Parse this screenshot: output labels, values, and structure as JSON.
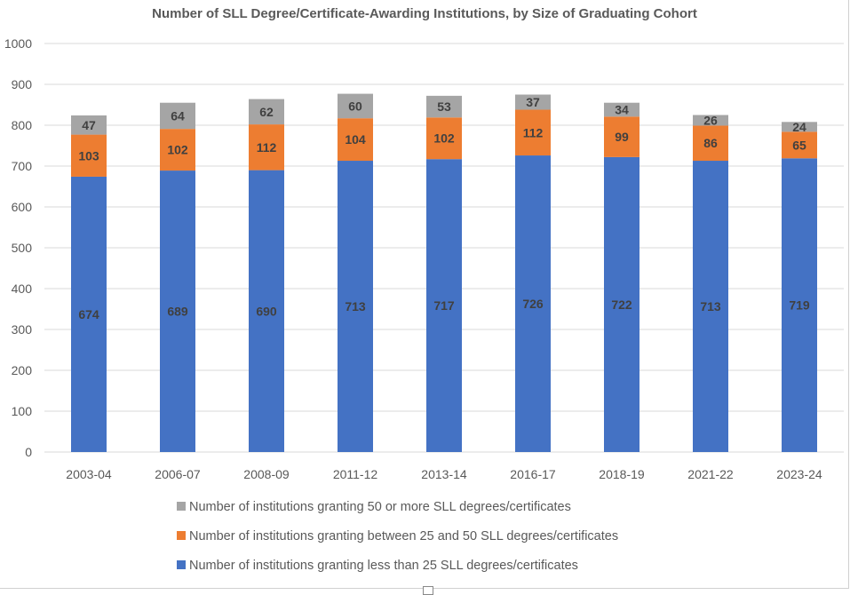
{
  "chart_data": {
    "type": "bar",
    "stacked": true,
    "title": "Number of SLL Degree/Certificate-Awarding Institutions, by Size of Graduating Cohort",
    "xlabel": "",
    "ylabel": "",
    "ylim": [
      0,
      1000
    ],
    "yticks": [
      0,
      100,
      200,
      300,
      400,
      500,
      600,
      700,
      800,
      900,
      1000
    ],
    "grid": true,
    "legend_position": "bottom",
    "categories": [
      "2003-04",
      "2006-07",
      "2008-09",
      "2011-12",
      "2013-14",
      "2016-17",
      "2018-19",
      "2021-22",
      "2023-24"
    ],
    "series": [
      {
        "name": "Number of institutions granting less than 25 SLL degrees/certificates",
        "color": "#4472C4",
        "values": [
          674,
          689,
          690,
          713,
          717,
          726,
          722,
          713,
          719
        ]
      },
      {
        "name": "Number of institutions granting between 25 and 50 SLL degrees/certificates",
        "color": "#ED7D31",
        "values": [
          103,
          102,
          112,
          104,
          102,
          112,
          99,
          86,
          65
        ]
      },
      {
        "name": "Number of institutions granting 50 or more SLL degrees/certificates",
        "color": "#A5A5A5",
        "values": [
          47,
          64,
          62,
          60,
          53,
          37,
          34,
          26,
          24
        ]
      }
    ],
    "legend_order": [
      2,
      1,
      0
    ]
  }
}
